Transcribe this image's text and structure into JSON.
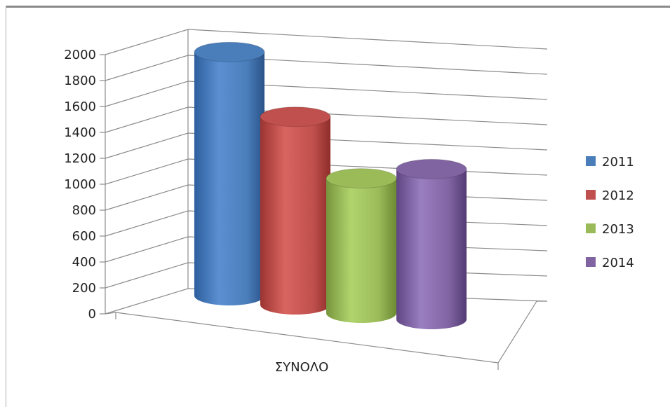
{
  "chart_data": {
    "type": "bar",
    "style": "3d-cylinder",
    "categories": [
      "ΣΥΝΟΛΟ"
    ],
    "series": [
      {
        "name": "2011",
        "values": [
          1880
        ],
        "color": "#4a7ebb"
      },
      {
        "name": "2012",
        "values": [
          1450
        ],
        "color": "#c0504d"
      },
      {
        "name": "2013",
        "values": [
          1040
        ],
        "color": "#9bbb59"
      },
      {
        "name": "2014",
        "values": [
          1160
        ],
        "color": "#8064a2"
      }
    ],
    "yticks": [
      "0",
      "200",
      "400",
      "600",
      "800",
      "1000",
      "1200",
      "1400",
      "1600",
      "1800",
      "2000"
    ],
    "ylim": [
      0,
      2000
    ],
    "grid": true,
    "legend": "right"
  }
}
